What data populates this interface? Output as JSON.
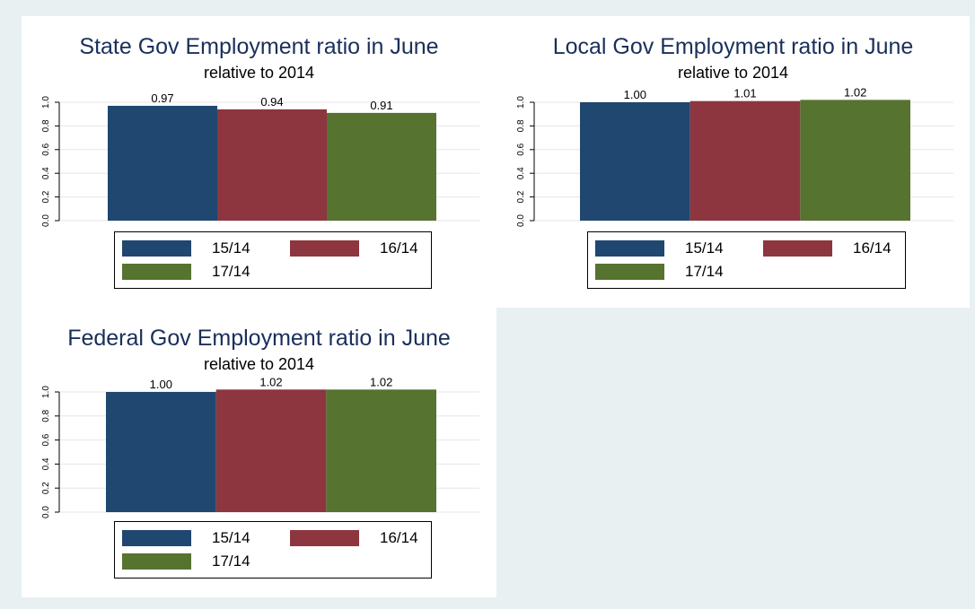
{
  "colors": {
    "series_15_14": "#1f4770",
    "series_16_14": "#8d363f",
    "series_17_14": "#567330",
    "background": "#e8f0f2",
    "title": "#1a2f5a"
  },
  "chart_data": [
    {
      "type": "bar",
      "title": "State Gov Employment ratio in June",
      "subtitle": "relative to 2014",
      "xlabel": "",
      "ylabel": "",
      "ylim": [
        0,
        1.0
      ],
      "yticks": [
        "0.0",
        "0.2",
        "0.4",
        "0.6",
        "0.8",
        "1.0"
      ],
      "grid": true,
      "legend_position": "bottom",
      "series": [
        {
          "name": "15/14",
          "value": 0.97,
          "label": "0.97"
        },
        {
          "name": "16/14",
          "value": 0.94,
          "label": "0.94"
        },
        {
          "name": "17/14",
          "value": 0.91,
          "label": "0.91"
        }
      ]
    },
    {
      "type": "bar",
      "title": "Local Gov Employment ratio in June",
      "subtitle": "relative to 2014",
      "xlabel": "",
      "ylabel": "",
      "ylim": [
        0,
        1.0
      ],
      "yticks": [
        "0.0",
        "0.2",
        "0.4",
        "0.6",
        "0.8",
        "1.0"
      ],
      "grid": true,
      "legend_position": "bottom",
      "series": [
        {
          "name": "15/14",
          "value": 1.0,
          "label": "1.00"
        },
        {
          "name": "16/14",
          "value": 1.01,
          "label": "1.01"
        },
        {
          "name": "17/14",
          "value": 1.02,
          "label": "1.02"
        }
      ]
    },
    {
      "type": "bar",
      "title": "Federal Gov Employment ratio in June",
      "subtitle": "relative to 2014",
      "xlabel": "",
      "ylabel": "",
      "ylim": [
        0,
        1.0
      ],
      "yticks": [
        "0.0",
        "0.2",
        "0.4",
        "0.6",
        "0.8",
        "1.0"
      ],
      "grid": true,
      "legend_position": "bottom",
      "series": [
        {
          "name": "15/14",
          "value": 1.0,
          "label": "1.00"
        },
        {
          "name": "16/14",
          "value": 1.02,
          "label": "1.02"
        },
        {
          "name": "17/14",
          "value": 1.02,
          "label": "1.02"
        }
      ]
    }
  ]
}
